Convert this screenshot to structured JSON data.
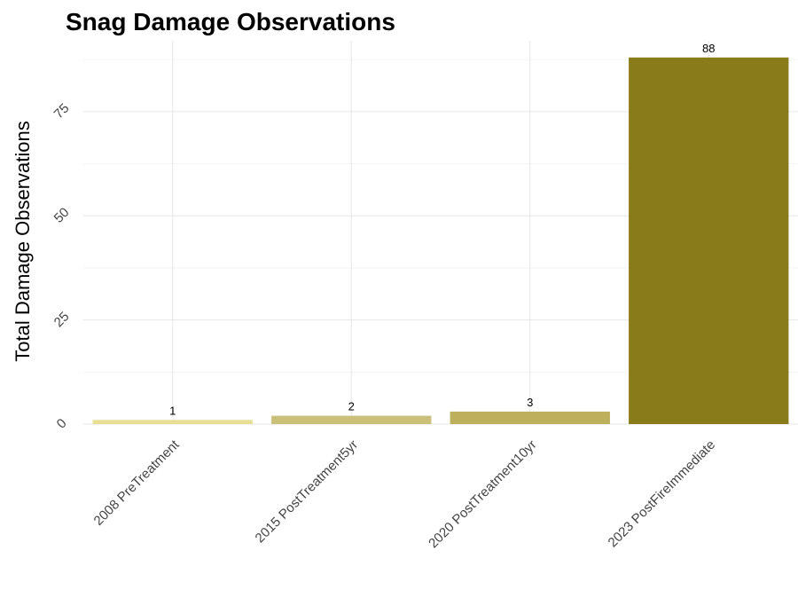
{
  "chart_data": {
    "type": "bar",
    "title": "Snag Damage Observations",
    "xlabel": "",
    "ylabel": "Total Damage Observations",
    "categories": [
      "2008 PreTreatment",
      "2015 PostTreatment5yr",
      "2020 PostTreatment10yr",
      "2023 PostFireImmediate"
    ],
    "values": [
      1,
      2,
      3,
      88
    ],
    "data_labels": [
      "1",
      "2",
      "3",
      "88"
    ],
    "colors": [
      "#e8df95",
      "#cbc07a",
      "#bdb05d",
      "#8a7b1a"
    ],
    "ylim": [
      0,
      92
    ],
    "yticks": [
      0,
      25,
      50,
      75
    ],
    "ytick_labels": [
      "0",
      "25",
      "50",
      "75"
    ],
    "grid": true,
    "legend": "none"
  }
}
